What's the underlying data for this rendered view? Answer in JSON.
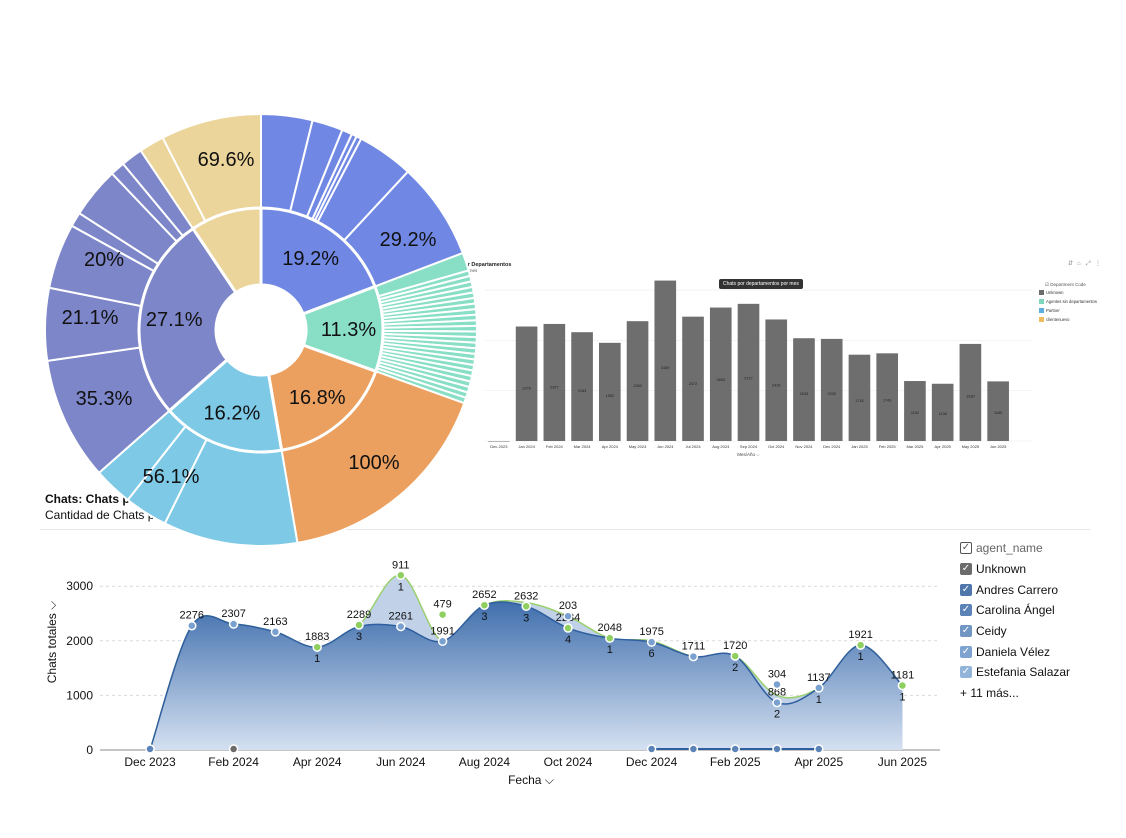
{
  "bar_panel": {
    "title": "por Departamentos",
    "subtitle": "por mes",
    "tooltip": "Chats por departamentos por mes",
    "x_title": "Mes/Año",
    "toolbar_icons": [
      "sort-icon",
      "home-icon",
      "expand-icon",
      "more-icon"
    ],
    "legend": {
      "title": "Department Code",
      "items": [
        {
          "label": "Unknown",
          "color": "#6b6b6b"
        },
        {
          "label": "Agentes sin departamentos",
          "color": "#7fd6bd"
        },
        {
          "label": "Partner",
          "color": "#5aaee0"
        },
        {
          "label": "clientenuevo",
          "color": "#f1bc5d"
        }
      ]
    }
  },
  "main_title": "Chats: Chats po",
  "main_subtitle": "Cantidad de Chats po",
  "legend": {
    "title": "agent_name",
    "items": [
      {
        "label": "Unknown",
        "color": "#6b6b6b"
      },
      {
        "label": "Andres Carrero",
        "color": "#4f77ab"
      },
      {
        "label": "Carolina Ángel",
        "color": "#5b83b7"
      },
      {
        "label": "Ceidy",
        "color": "#7196c4"
      },
      {
        "label": "Daniela Vélez",
        "color": "#7ea3cf"
      },
      {
        "label": "Estefania Salazar",
        "color": "#93b4da"
      }
    ],
    "more": "+ 11 más..."
  },
  "chart_data": [
    {
      "type": "pie",
      "chart_kind": "sunburst",
      "inner_ring": [
        {
          "label": "19.2%",
          "value": 19.2,
          "color": "#7088e4"
        },
        {
          "label": "11.3%",
          "value": 11.3,
          "color": "#88dfc6"
        },
        {
          "label": "16.8%",
          "value": 16.8,
          "color": "#eba05f"
        },
        {
          "label": "16.2%",
          "value": 16.2,
          "color": "#7dc9e6"
        },
        {
          "label": "27.1%",
          "value": 27.1,
          "color": "#7d86c8"
        },
        {
          "label": "",
          "value": 9.4,
          "color": "#ebd59a"
        }
      ],
      "outer_labels": [
        "29.2%",
        "100%",
        "56.1%",
        "35.3%",
        "21.1%",
        "20%",
        "69.6%"
      ]
    },
    {
      "type": "bar",
      "categories": [
        "Dec 2023",
        "Jan 2024",
        "Feb 2024",
        "Mar 2024",
        "Apr 2024",
        "May 2024",
        "Jun 2024",
        "Jul 2024",
        "Aug 2024",
        "Sep 2024",
        "Oct 2024",
        "Nov 2024",
        "Dec 2024",
        "Jan 2025",
        "Feb 2025",
        "Mar 2025",
        "Apr 2025",
        "May 2025",
        "Jun 2025"
      ],
      "values": [
        0,
        2276,
        2327,
        2163,
        1952,
        2382,
        3189,
        2472,
        2653,
        2727,
        2416,
        2043,
        2030,
        1716,
        1743,
        1192,
        1138,
        1930,
        1185
      ],
      "value_labels": [
        "",
        "2276",
        "2327",
        "2163",
        "1952",
        "2382",
        "3189",
        "2472",
        "2653",
        "2727",
        "2416",
        "2043",
        "2030",
        "1716",
        "1743",
        "1192",
        "1138",
        "1930",
        "1185"
      ],
      "ylim": [
        0,
        3300
      ],
      "color": "#6e6e6e"
    },
    {
      "type": "area",
      "xlabel": "Fecha",
      "ylabel": "Chats totales",
      "ylim": [
        0,
        3200
      ],
      "yticks": [
        "0",
        "1000",
        "2000",
        "3000"
      ],
      "xtick_labels": [
        "Dec 2023",
        "Feb 2024",
        "Apr 2024",
        "Jun 2024",
        "Aug 2024",
        "Oct 2024",
        "Dec 2024",
        "Feb 2025",
        "Apr 2025",
        "Jun 2025"
      ],
      "x": [
        "Dec 2023",
        "Jan 2024",
        "Feb 2024",
        "Mar 2024",
        "Apr 2024",
        "May 2024",
        "Jun 2024",
        "Jul 2024",
        "Aug 2024",
        "Sep 2024",
        "Oct 2024",
        "Nov 2024",
        "Dec 2024",
        "Jan 2025",
        "Feb 2025",
        "Mar 2025",
        "Apr 2025",
        "May 2025",
        "Jun 2025"
      ],
      "series": [
        {
          "values": [
            0,
            2276,
            2307,
            2163,
            1883,
            2289,
            3200,
            1991,
            2652,
            2700,
            2450,
            2048,
            2000,
            1711,
            1720,
            1000,
            1137,
            1921,
            1181
          ],
          "color": "#b9cce6"
        },
        {
          "values": [
            0,
            2276,
            2307,
            2163,
            1883,
            2261,
            2261,
            1991,
            2652,
            2632,
            2234,
            2048,
            1975,
            1711,
            1720,
            868,
            1137,
            1921,
            1181
          ],
          "color": "#3e6fae"
        }
      ],
      "point_labels": [
        {
          "x": "Jan 2024",
          "y": 2276,
          "label": "2276"
        },
        {
          "x": "Feb 2024",
          "y": 2307,
          "label": "2307"
        },
        {
          "x": "Mar 2024",
          "y": 2163,
          "label": "2163"
        },
        {
          "x": "Apr 2024",
          "y": 1883,
          "label": "1883",
          "sub": "1"
        },
        {
          "x": "May 2024",
          "y": 2289,
          "label": "2289",
          "sub": "3"
        },
        {
          "x": "Jun 2024",
          "y": 2261,
          "label": "2261"
        },
        {
          "x": "Jun 2024",
          "y": 3200,
          "label": "911",
          "sub": "1"
        },
        {
          "x": "Jul 2024",
          "y": 1991,
          "label": "1991"
        },
        {
          "x": "Jul 2024",
          "y": 2480,
          "label": "479"
        },
        {
          "x": "Aug 2024",
          "y": 2652,
          "label": "2652",
          "sub": "3"
        },
        {
          "x": "Sep 2024",
          "y": 2632,
          "label": "2632",
          "sub": "3"
        },
        {
          "x": "Oct 2024",
          "y": 2234,
          "label": "2234",
          "sub": "4"
        },
        {
          "x": "Oct 2024",
          "y": 2450,
          "label": "203"
        },
        {
          "x": "Nov 2024",
          "y": 2048,
          "label": "2048",
          "sub": "1"
        },
        {
          "x": "Dec 2024",
          "y": 1975,
          "label": "1975",
          "sub": "6"
        },
        {
          "x": "Jan 2025",
          "y": 1711,
          "label": "1711"
        },
        {
          "x": "Feb 2025",
          "y": 1720,
          "label": "1720",
          "sub": "2"
        },
        {
          "x": "Mar 2025",
          "y": 868,
          "label": "868",
          "sub": "2"
        },
        {
          "x": "Mar 2025",
          "y": 1200,
          "label": "304"
        },
        {
          "x": "Apr 2025",
          "y": 1137,
          "label": "1137",
          "sub": "1"
        },
        {
          "x": "May 2025",
          "y": 1921,
          "label": "1921",
          "sub": "1"
        },
        {
          "x": "Jun 2025",
          "y": 1181,
          "label": "1181",
          "sub": "1"
        }
      ]
    }
  ]
}
